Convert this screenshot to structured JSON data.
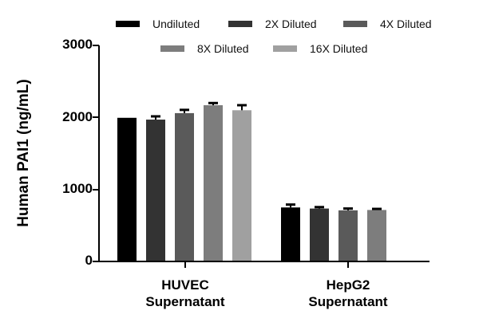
{
  "chart_data": {
    "type": "bar",
    "title": "",
    "xlabel": "",
    "ylabel": "Human PAI1 (ng/mL)",
    "ylim": [
      0,
      3000
    ],
    "yticks": [
      0,
      1000,
      2000,
      3000
    ],
    "grid": false,
    "legend_position": "top",
    "categories": [
      "HUVEC Supernatant",
      "HepG2 Supernatant"
    ],
    "category_lines": [
      [
        "HUVEC",
        "Supernatant"
      ],
      [
        "HepG2",
        "Supernatant"
      ]
    ],
    "series": [
      {
        "name": "Undiluted",
        "color": "#000000",
        "values": [
          1995,
          750
        ],
        "errors": [
          0,
          40
        ]
      },
      {
        "name": "2X Diluted",
        "color": "#333333",
        "values": [
          1970,
          735
        ],
        "errors": [
          45,
          20
        ]
      },
      {
        "name": "4X Diluted",
        "color": "#5a5a5a",
        "values": [
          2060,
          710
        ],
        "errors": [
          45,
          25
        ]
      },
      {
        "name": "8X Diluted",
        "color": "#7d7d7d",
        "values": [
          2170,
          715
        ],
        "errors": [
          30,
          15
        ]
      },
      {
        "name": "16X Diluted",
        "color": "#a0a0a0",
        "values": [
          2100,
          null
        ],
        "errors": [
          70,
          null
        ]
      }
    ]
  }
}
